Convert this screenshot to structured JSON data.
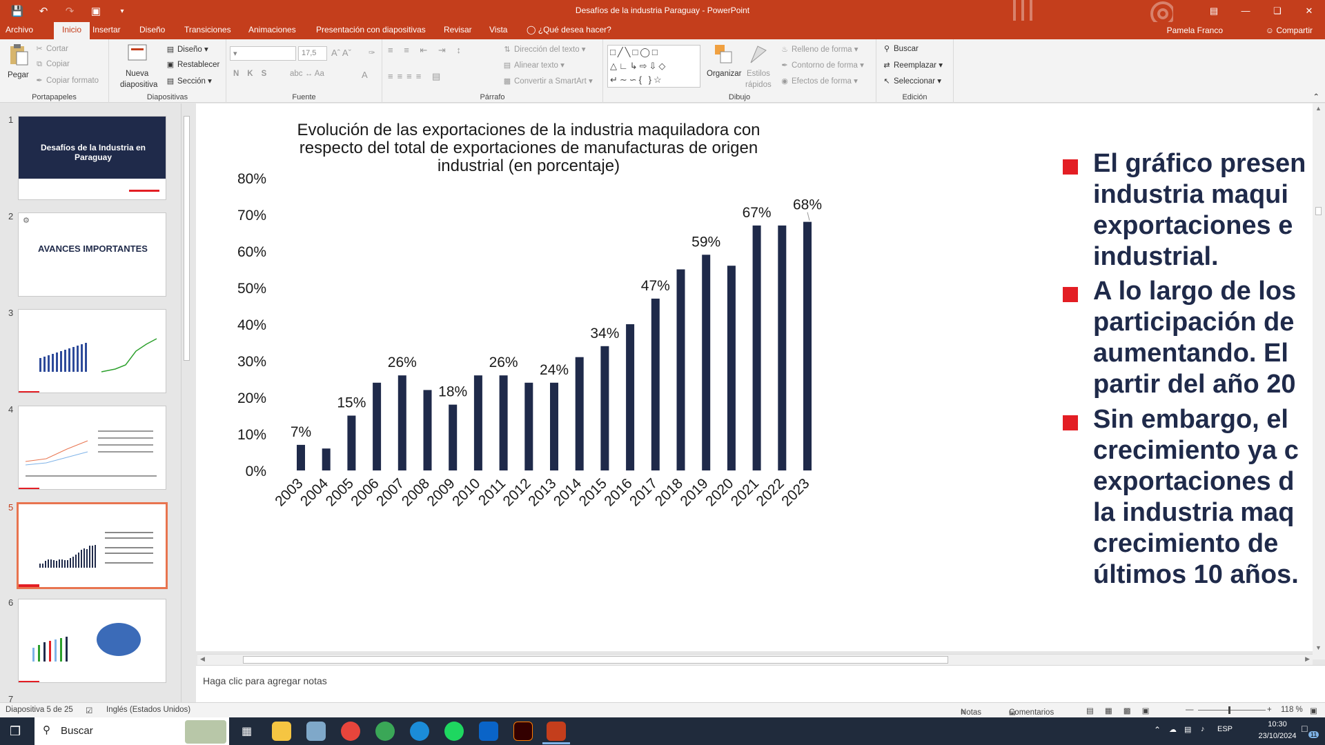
{
  "window": {
    "title": "Desafíos de la industria Paraguay - PowerPoint",
    "user": "Pamela Franco",
    "share": "Compartir"
  },
  "tabs": [
    "Archivo",
    "Inicio",
    "Insertar",
    "Diseño",
    "Transiciones",
    "Animaciones",
    "Presentación con diapositivas",
    "Revisar",
    "Vista"
  ],
  "tell_me": "¿Qué desea hacer?",
  "ribbon": {
    "clipboard": {
      "paste": "Pegar",
      "cut": "Cortar",
      "copy": "Copiar",
      "format_painter": "Copiar formato",
      "label": "Portapapeles"
    },
    "slides": {
      "new_slide_1": "Nueva",
      "new_slide_2": "diapositiva",
      "layout": "Diseño",
      "reset": "Restablecer",
      "section": "Sección",
      "label": "Diapositivas"
    },
    "font": {
      "size": "17,5",
      "label": "Fuente"
    },
    "paragraph": {
      "text_direction": "Dirección del texto",
      "align_text": "Alinear texto",
      "smartart": "Convertir a SmartArt",
      "label": "Párrafo"
    },
    "drawing": {
      "arrange": "Organizar",
      "quick_styles_1": "Estilos",
      "quick_styles_2": "rápidos",
      "shape_fill": "Relleno de forma",
      "shape_outline": "Contorno de forma",
      "shape_effects": "Efectos de forma",
      "label": "Dibujo"
    },
    "editing": {
      "find": "Buscar",
      "replace": "Reemplazar",
      "select": "Seleccionar",
      "label": "Edición"
    }
  },
  "thumbnails": [
    {
      "num": "1",
      "title": "Desafíos de la Industria en Paraguay"
    },
    {
      "num": "2",
      "title": "AVANCES IMPORTANTES"
    },
    {
      "num": "3"
    },
    {
      "num": "4"
    },
    {
      "num": "5"
    },
    {
      "num": "6"
    },
    {
      "num": "7"
    }
  ],
  "slide": {
    "bullets": [
      [
        "El gráfico presen",
        "industria maqui",
        "exportaciones e",
        "industrial."
      ],
      [
        "A lo largo de los",
        "participación de",
        "aumentando. El",
        "partir del año 20"
      ],
      [
        "Sin embargo, el",
        "crecimiento ya c",
        "exportaciones d",
        "la industria maq",
        "crecimiento de",
        "últimos 10 años."
      ]
    ]
  },
  "chart_data": {
    "type": "bar",
    "title": [
      "Evolución de las exportaciones de la industria maquiladora con",
      "respecto del total de exportaciones de manufacturas de origen",
      "industrial (en porcentaje)"
    ],
    "categories": [
      "2003",
      "2004",
      "2005",
      "2006",
      "2007",
      "2008",
      "2009",
      "2010",
      "2011",
      "2012",
      "2013",
      "2014",
      "2015",
      "2016",
      "2017",
      "2018",
      "2019",
      "2020",
      "2021",
      "2022",
      "2023"
    ],
    "values": [
      7,
      6,
      15,
      24,
      26,
      22,
      18,
      26,
      26,
      24,
      24,
      31,
      34,
      40,
      47,
      55,
      59,
      56,
      67,
      67,
      68
    ],
    "data_labels": [
      "7%",
      "",
      "15%",
      "",
      "26%",
      "",
      "18%",
      "",
      "26%",
      "",
      "24%",
      "",
      "34%",
      "",
      "47%",
      "",
      "59%",
      "",
      "67%",
      "",
      "68%"
    ],
    "y_ticks": [
      "0%",
      "10%",
      "20%",
      "30%",
      "40%",
      "50%",
      "60%",
      "70%",
      "80%"
    ],
    "ylim": [
      0,
      80
    ],
    "bar_color": "#1f2a4a",
    "grid": false,
    "legend": false
  },
  "notes": "Haga clic para agregar notas",
  "status": {
    "slide_info": "Diapositiva 5 de 25",
    "language": "Inglés (Estados Unidos)",
    "notes": "Notas",
    "comments": "Comentarios",
    "zoom": "118 %"
  },
  "taskbar": {
    "search": "Buscar",
    "lang": "ESP",
    "time": "10:30",
    "date": "23/10/2024",
    "notif": "11"
  },
  "colors": {
    "accent": "#c43e1c",
    "navy": "#1f2a4a",
    "bullet_red": "#e31e24"
  }
}
